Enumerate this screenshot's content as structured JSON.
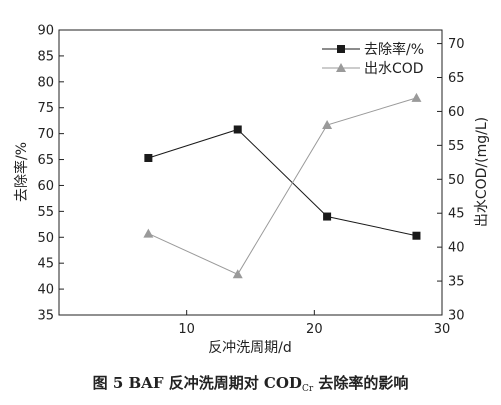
{
  "chart_data": {
    "type": "line",
    "x": [
      7,
      14,
      21,
      28
    ],
    "xlabel": "反冲洗周期/d",
    "xlim": [
      0,
      30
    ],
    "xticks": [
      10,
      20,
      30
    ],
    "series": [
      {
        "name": "去除率/%",
        "axis": "left",
        "marker": "square",
        "color": "#1a1a1a",
        "values": [
          65.3,
          70.8,
          54.0,
          50.3
        ]
      },
      {
        "name": "出水COD",
        "axis": "right",
        "marker": "triangle",
        "color": "#9a9a9a",
        "values": [
          42,
          36,
          58,
          62
        ]
      }
    ],
    "ylabel_left": "去除率/%",
    "ylim_left": [
      35,
      90
    ],
    "yticks_left": [
      35,
      40,
      45,
      50,
      55,
      60,
      65,
      70,
      75,
      80,
      85,
      90
    ],
    "ylabel_right": "出水COD/(mg/L)",
    "ylim_right": [
      30,
      72
    ],
    "yticks_right": [
      30,
      35,
      40,
      45,
      50,
      55,
      60,
      65,
      70
    ],
    "legend_placement": "top-right",
    "grid": false
  },
  "caption": {
    "prefix": "图 5    BAF 反冲洗周期对 COD",
    "subscript": "Cr",
    "suffix": " 去除率的影响"
  }
}
